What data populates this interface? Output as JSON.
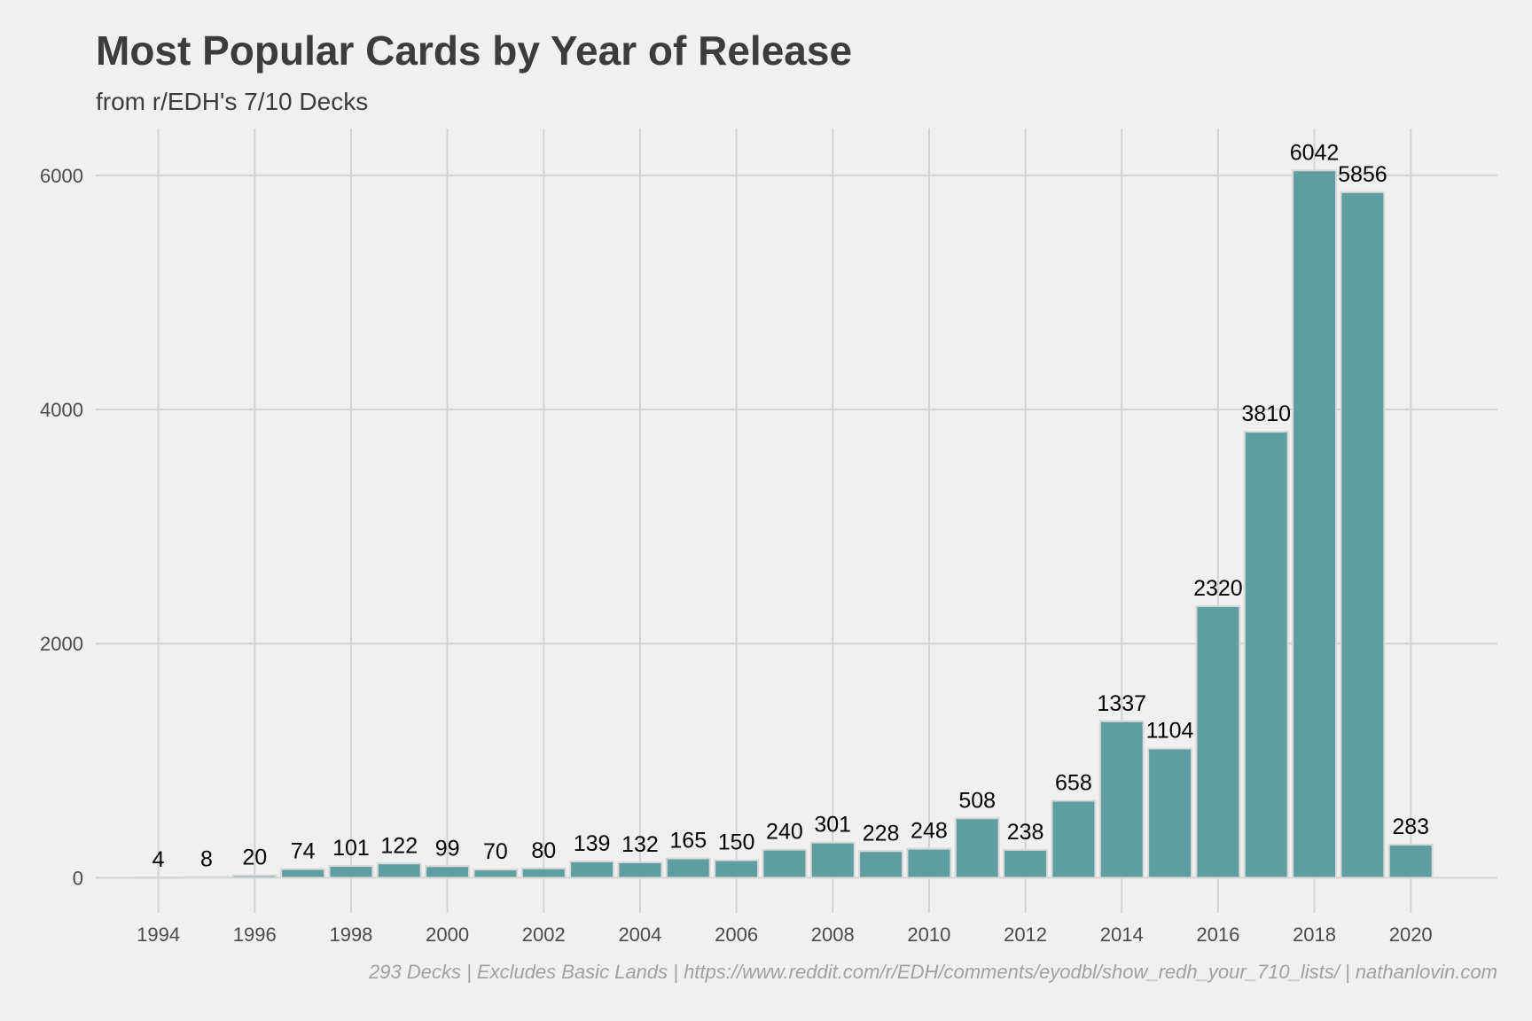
{
  "chart_data": {
    "type": "bar",
    "title": "Most Popular Cards by Year of Release",
    "subtitle": "from r/EDH's 7/10 Decks",
    "caption": "293 Decks | Excludes Basic Lands | https://www.reddit.com/r/EDH/comments/eyodbl/show_redh_your_710_lists/ | nathanlovin.com",
    "xlabel": "",
    "ylabel": "",
    "categories": [
      1994,
      1995,
      1996,
      1997,
      1998,
      1999,
      2000,
      2001,
      2002,
      2003,
      2004,
      2005,
      2006,
      2007,
      2008,
      2009,
      2010,
      2011,
      2012,
      2013,
      2014,
      2015,
      2016,
      2017,
      2018,
      2019,
      2020
    ],
    "values": [
      4,
      8,
      20,
      74,
      101,
      122,
      99,
      70,
      80,
      139,
      132,
      165,
      150,
      240,
      301,
      228,
      248,
      508,
      238,
      658,
      1337,
      1104,
      2320,
      3810,
      6042,
      5856,
      283
    ],
    "x_ticks": [
      "1994",
      "1996",
      "1998",
      "2000",
      "2002",
      "2004",
      "2006",
      "2008",
      "2010",
      "2012",
      "2014",
      "2016",
      "2018",
      "2020"
    ],
    "y_ticks": [
      "0",
      "2000",
      "4000",
      "6000"
    ],
    "ylim": [
      -300,
      6400
    ],
    "xlim": [
      1992.7,
      2021.8
    ],
    "grid": true,
    "legend": "none",
    "colors": {
      "bar": "#5f9ea0",
      "bar_outline": "#d8d8d8",
      "background": "#f0f0f0",
      "grid": "#d2d2d2"
    }
  }
}
